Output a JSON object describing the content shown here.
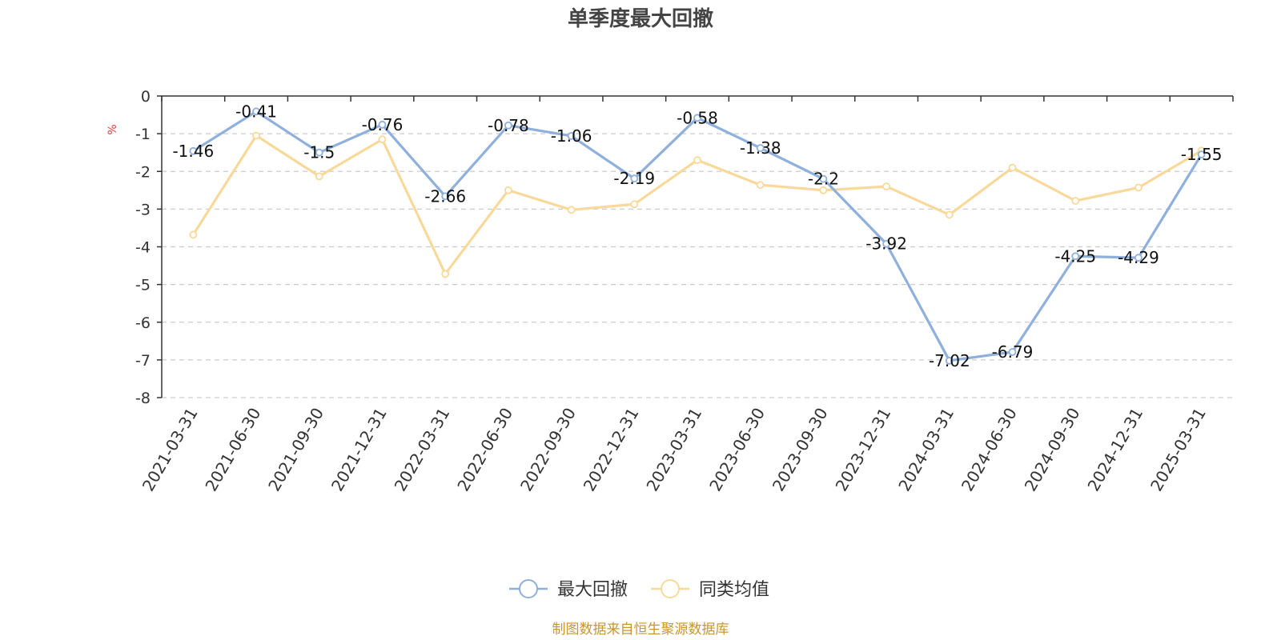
{
  "chart_data": {
    "type": "line",
    "title": "单季度最大回撤",
    "ylabel": "%",
    "ylim": [
      -8,
      0
    ],
    "yticks": [
      0,
      -1,
      -2,
      -3,
      -4,
      -5,
      -6,
      -7,
      -8
    ],
    "grid": true,
    "legend_position": "bottom-center",
    "categories": [
      "2021-03-31",
      "2021-06-30",
      "2021-09-30",
      "2021-12-31",
      "2022-03-31",
      "2022-06-30",
      "2022-09-30",
      "2022-12-31",
      "2023-03-31",
      "2023-06-30",
      "2023-09-30",
      "2023-12-31",
      "2024-03-31",
      "2024-06-30",
      "2024-09-30",
      "2024-12-31",
      "2025-03-31"
    ],
    "series": [
      {
        "name": "最大回撤",
        "color": "#8fb0dc",
        "values": [
          -1.46,
          -0.41,
          -1.5,
          -0.76,
          -2.66,
          -0.78,
          -1.06,
          -2.19,
          -0.58,
          -1.38,
          -2.2,
          -3.92,
          -7.02,
          -6.79,
          -4.25,
          -4.29,
          -1.55
        ],
        "data_labels": [
          "-1.46",
          "-0.41",
          "-1.5",
          "-0.76",
          "-2.66",
          "-0.78",
          "-1.06",
          "-2.19",
          "-0.58",
          "-1.38",
          "-2.2",
          "-3.92",
          "-7.02",
          "-6.79",
          "-4.25",
          "-4.29",
          "-1.55"
        ]
      },
      {
        "name": "同类均值",
        "color": "#f8d99a",
        "values": [
          -3.68,
          -1.05,
          -2.13,
          -1.15,
          -4.72,
          -2.5,
          -3.02,
          -2.87,
          -1.7,
          -2.36,
          -2.5,
          -2.4,
          -3.15,
          -1.9,
          -2.78,
          -2.43,
          -1.45
        ]
      }
    ],
    "source": "制图数据来自恒生聚源数据库"
  }
}
